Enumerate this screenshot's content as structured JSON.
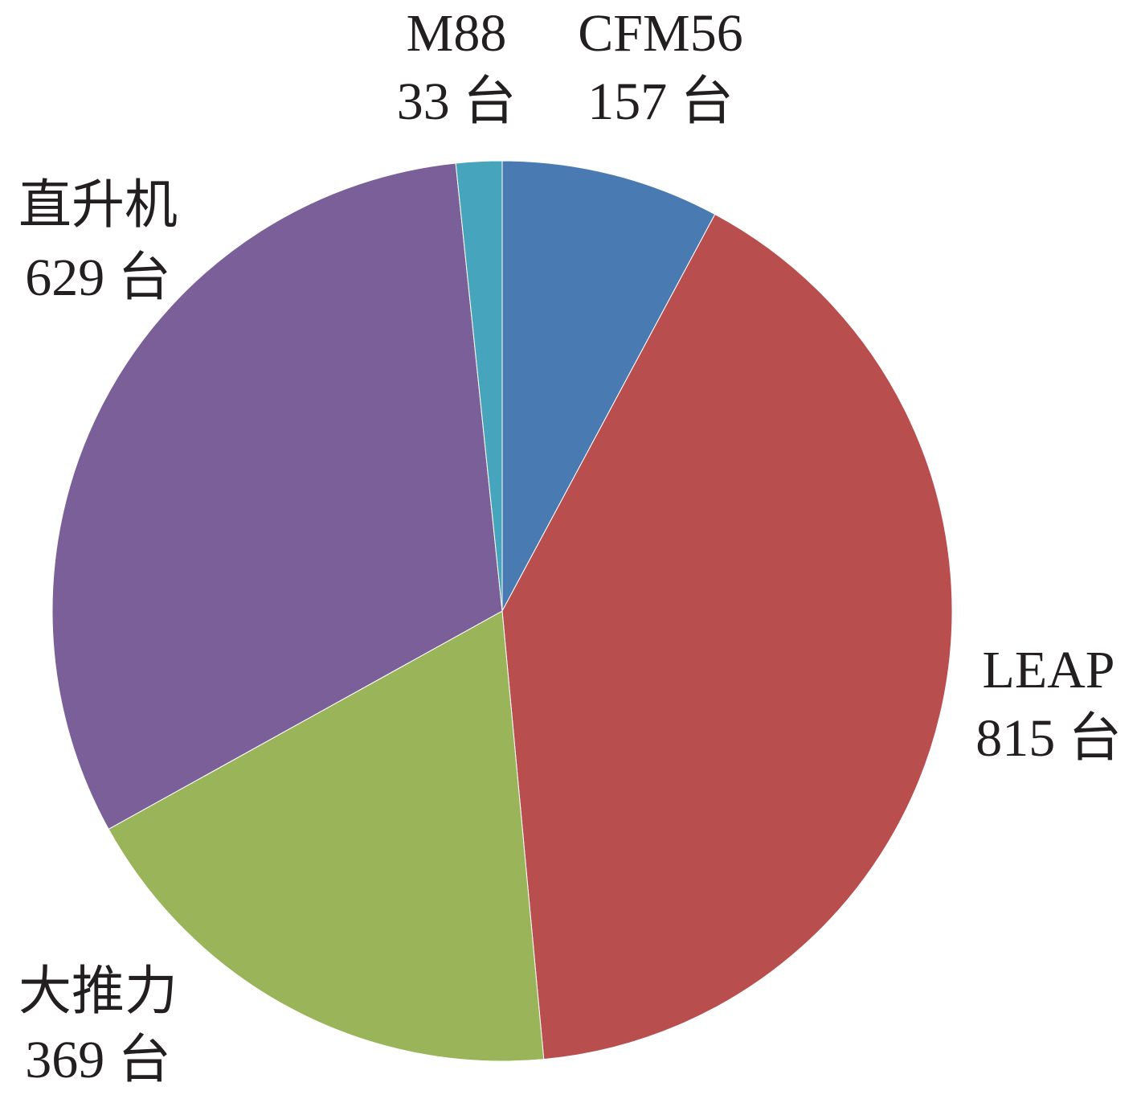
{
  "chart_data": {
    "type": "pie",
    "categories": [
      "CFM56",
      "LEAP",
      "大推力",
      "直升机",
      "M88"
    ],
    "values": [
      157,
      815,
      369,
      629,
      33
    ],
    "value_labels": [
      "157 台",
      "815 台",
      "369 台",
      "629 台",
      "33 台"
    ],
    "colors": [
      "#4a7ab2",
      "#b94e4e",
      "#9ab45a",
      "#7b5f98",
      "#46a4bc"
    ]
  }
}
